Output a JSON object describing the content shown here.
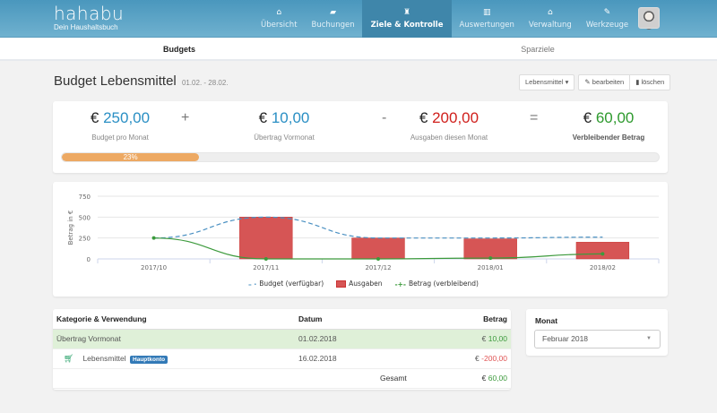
{
  "navbar": {
    "brand": "hahabu",
    "tagline": "Dein Haushaltsbuch",
    "items": [
      {
        "label": "Übersicht",
        "icon": "home-icon",
        "glyph": "⌂"
      },
      {
        "label": "Buchungen",
        "icon": "book-icon",
        "glyph": "▰"
      },
      {
        "label": "Ziele & Kontrolle",
        "icon": "trophy-icon",
        "glyph": "♜"
      },
      {
        "label": "Auswertungen",
        "icon": "bar-chart-icon",
        "glyph": "▥"
      },
      {
        "label": "Verwaltung",
        "icon": "bank-icon",
        "glyph": "⌂"
      },
      {
        "label": "Werkzeuge",
        "icon": "wrench-icon",
        "glyph": "✎"
      }
    ],
    "inbox_icon": "⊟",
    "inbox_count": "0"
  },
  "subnav": {
    "tabs": [
      {
        "label": "Budgets",
        "active": true
      },
      {
        "label": "Sparziele",
        "active": false
      }
    ]
  },
  "page": {
    "title": "Budget Lebensmittel",
    "date_range": "01.02. - 28.02.",
    "category_dropdown": "Lebensmittel",
    "edit_label": "bearbeiten",
    "delete_label": "löschen"
  },
  "summary": {
    "currency": "€",
    "budget": {
      "value": "250,00",
      "label": "Budget pro Monat",
      "color": "#2a8fc4"
    },
    "carryover": {
      "value": "10,00",
      "label": "Übertrag Vormonat",
      "color": "#2a8fc4"
    },
    "expenses": {
      "value": "200,00",
      "label": "Ausgaben diesen Monat",
      "color": "#d0201c"
    },
    "remaining": {
      "value": "60,00",
      "label": "Verbleibender Betrag",
      "color": "#2e9a2e"
    },
    "op_plus": "+",
    "op_minus": "-",
    "op_equals": "=",
    "progress_percent": 23,
    "progress_label": "23%"
  },
  "chart_data": {
    "type": "bar",
    "title": "",
    "xlabel": "",
    "ylabel": "Betrag in €",
    "ylim": [
      0,
      750
    ],
    "yticks": [
      0,
      250,
      500,
      750
    ],
    "categories": [
      "2017/10",
      "2017/11",
      "2017/12",
      "2018/01",
      "2018/02"
    ],
    "series": [
      {
        "name": "Budget (verfügbar)",
        "type": "line-dashed",
        "color": "#4a90c2",
        "values": [
          250,
          500,
          250,
          250,
          260
        ]
      },
      {
        "name": "Ausgaben",
        "type": "bar",
        "color": "#d65555",
        "values": [
          0,
          500,
          250,
          240,
          200
        ]
      },
      {
        "name": "Betrag (verbleibend)",
        "type": "line",
        "color": "#3c9a3c",
        "values": [
          250,
          0,
          0,
          10,
          60
        ]
      }
    ],
    "grid": true,
    "legend_position": "bottom"
  },
  "table": {
    "headers": [
      "Kategorie & Verwendung",
      "Datum",
      "Betrag"
    ],
    "rows": [
      {
        "category": "Übertrag Vormonat",
        "date": "01.02.2018",
        "amount_currency": "€",
        "amount": "10,00",
        "type": "pos"
      },
      {
        "category": "Lebensmittel",
        "account": "Hauptkonto",
        "date": "16.02.2018",
        "amount_currency": "€",
        "amount": "-200,00",
        "type": "neg"
      }
    ],
    "total_label": "Gesamt",
    "total_currency": "€",
    "total": "60,00"
  },
  "month_panel": {
    "title": "Monat",
    "selected": "Februar 2018"
  }
}
